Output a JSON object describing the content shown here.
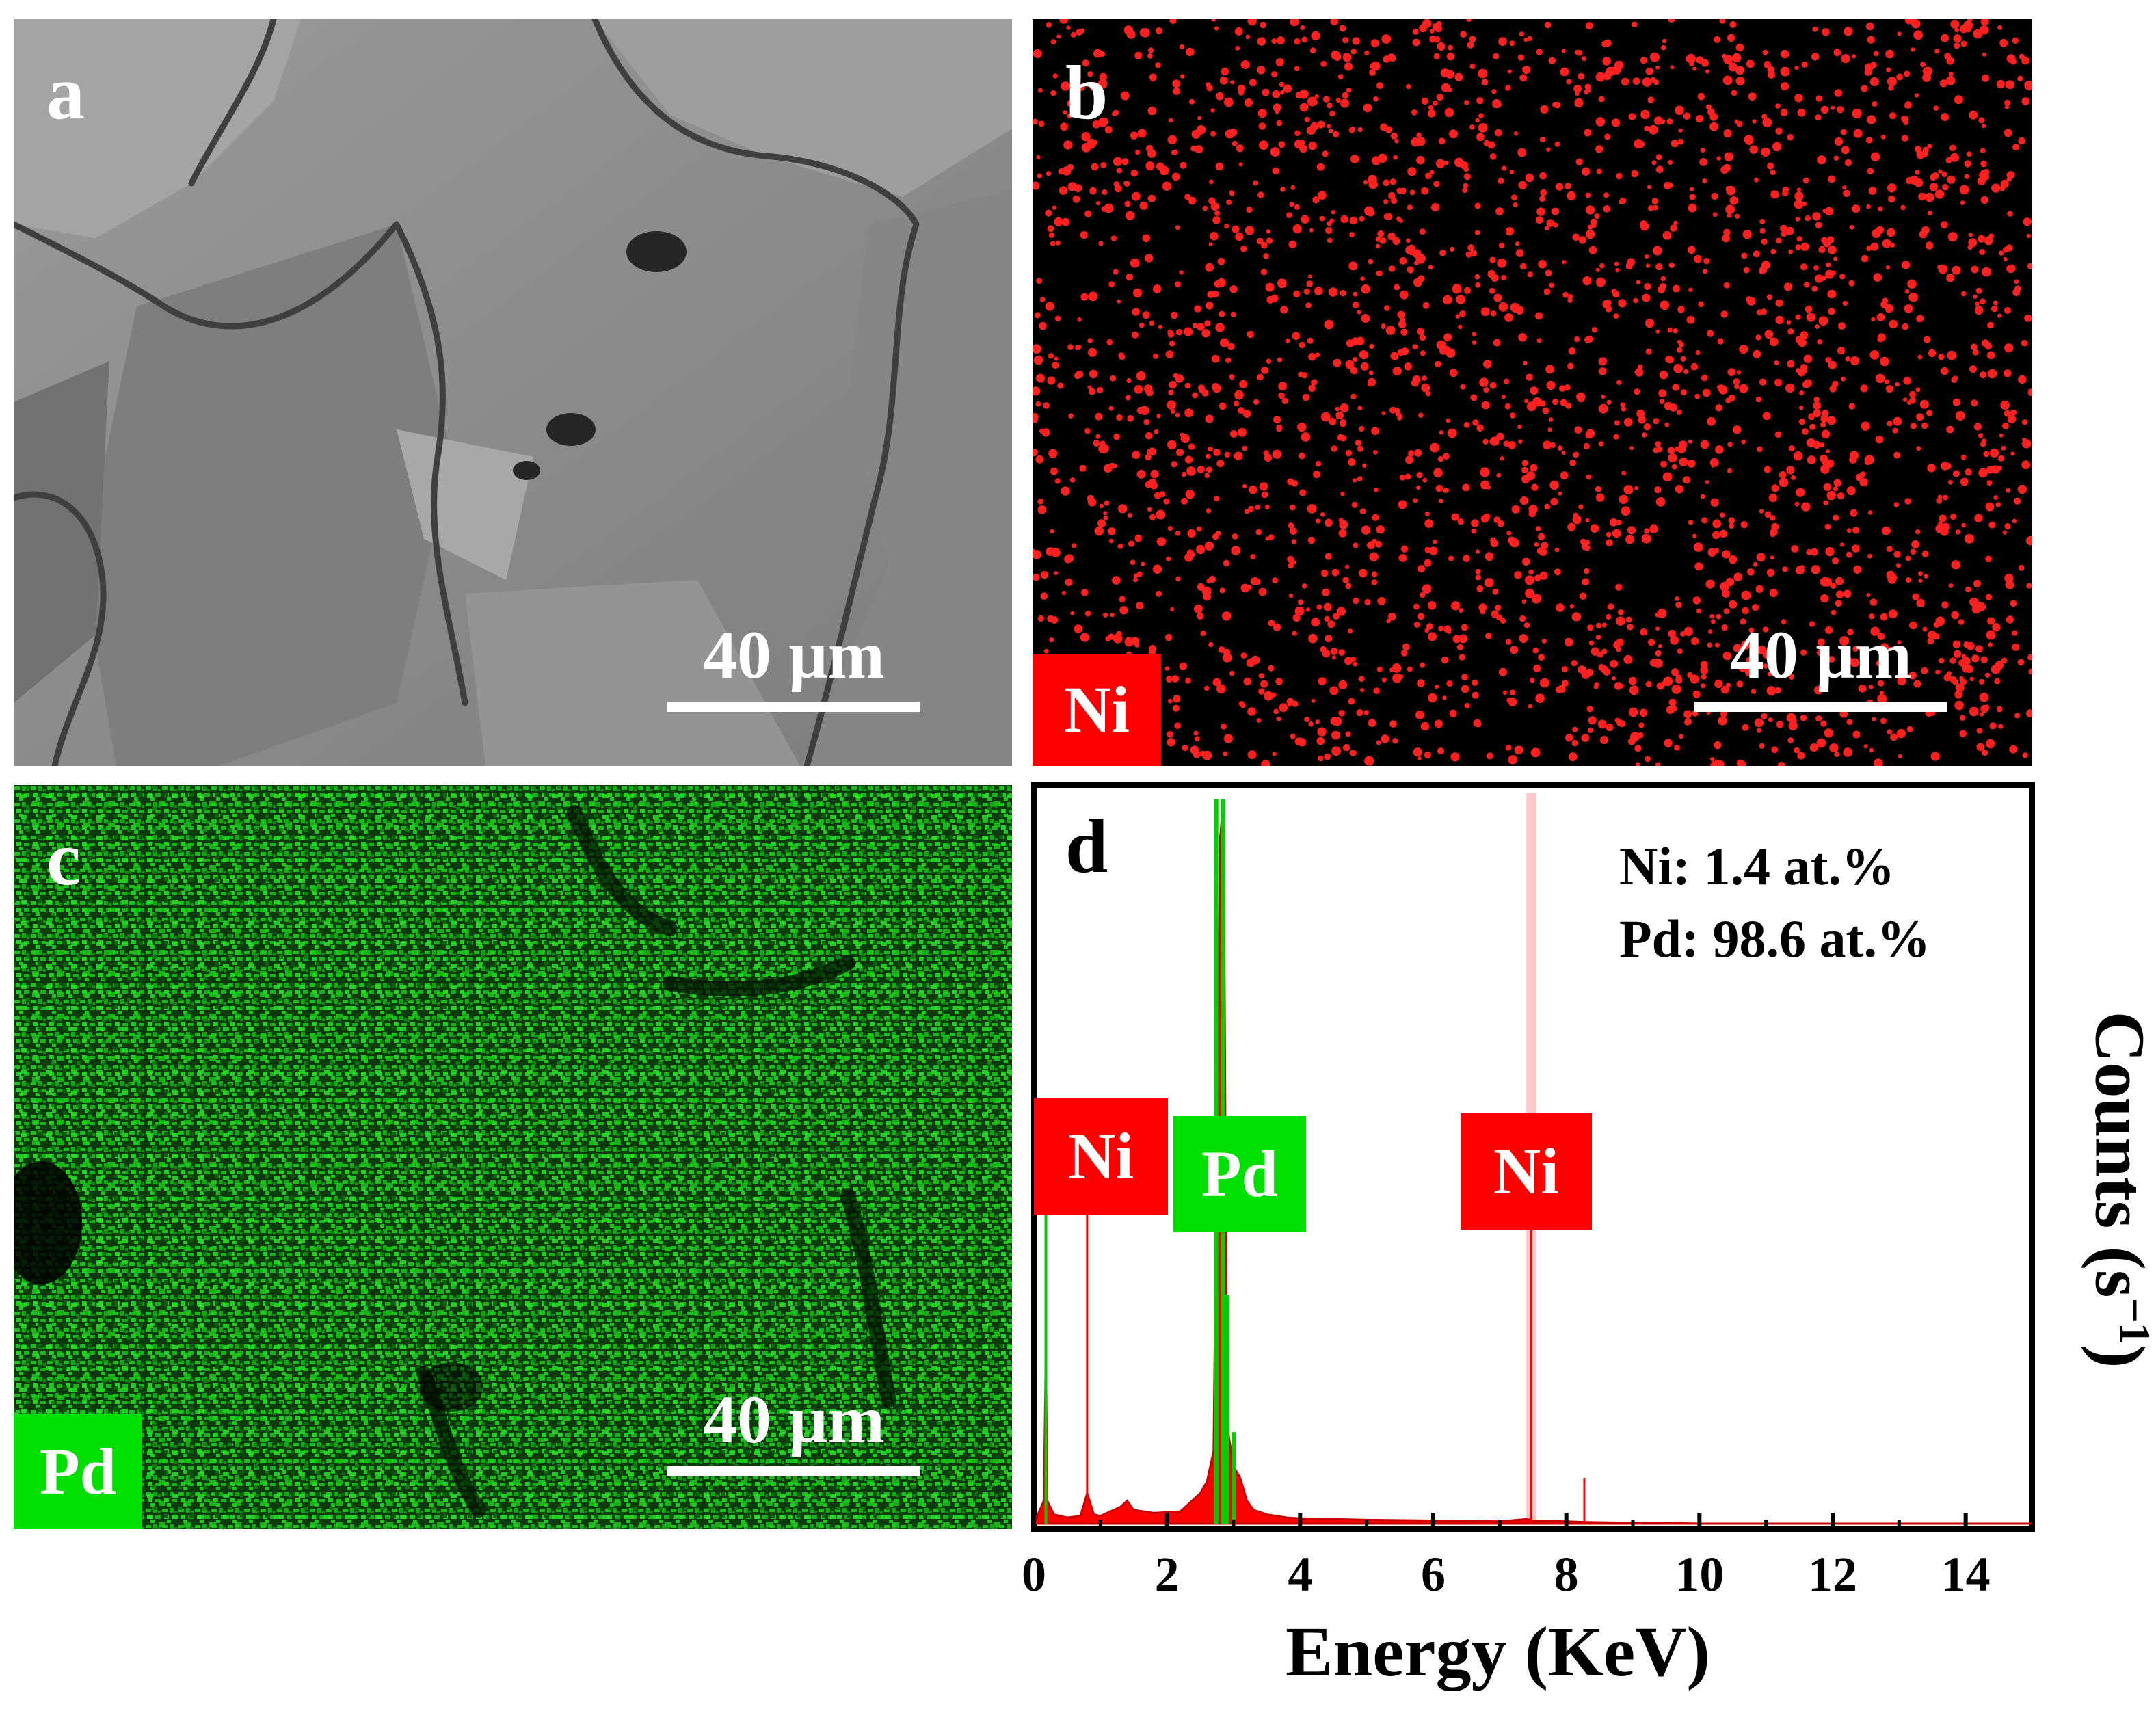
{
  "panels": {
    "a": {
      "letter": "a",
      "scalebar": "40 µm"
    },
    "b": {
      "letter": "b",
      "scalebar": "40 µm",
      "element": "Ni",
      "element_color": "#ff0000",
      "dot_color": "#ff2020"
    },
    "c": {
      "letter": "c",
      "scalebar": "40 µm",
      "element": "Pd",
      "element_color": "#00e000",
      "dot_color": "#10d010"
    },
    "d": {
      "letter": "d"
    }
  },
  "chart_data": {
    "type": "line",
    "xlabel": "Energy (KeV)",
    "ylabel_main": "Counts (s",
    "ylabel_sup": "−1",
    "ylabel_end": ")",
    "xlim": [
      0,
      15
    ],
    "x_ticks": [
      0,
      2,
      4,
      6,
      8,
      10,
      12,
      14
    ],
    "annotations": [
      "Ni: 1.4 at.%",
      "Pd: 98.6 at.%"
    ],
    "peak_labels": [
      {
        "text": "Ni",
        "color": "#ff0000",
        "energy": 0.8
      },
      {
        "text": "Pd",
        "color": "#00e000",
        "energy": 2.84
      },
      {
        "text": "Ni",
        "color": "#ff0000",
        "energy": 7.47
      }
    ],
    "series": [
      {
        "name": "Ni",
        "color": "#ff0000"
      },
      {
        "name": "Pd",
        "color": "#00d000"
      }
    ],
    "spectrum": {
      "x": [
        0.0,
        0.15,
        0.18,
        0.2,
        0.3,
        0.5,
        0.7,
        0.8,
        0.9,
        1.0,
        1.3,
        1.4,
        1.5,
        1.8,
        2.2,
        2.4,
        2.5,
        2.6,
        2.7,
        2.8,
        2.85,
        2.9,
        3.0,
        3.1,
        3.2,
        3.3,
        3.5,
        3.8,
        4.0,
        5.0,
        6.0,
        7.0,
        7.4,
        7.5,
        8.0,
        8.3,
        9.0,
        9.5,
        10.0,
        15.0
      ],
      "y": [
        0,
        30,
        230,
        30,
        12,
        8,
        10,
        40,
        12,
        10,
        22,
        30,
        18,
        14,
        16,
        32,
        40,
        55,
        95,
        900,
        950,
        130,
        75,
        60,
        30,
        18,
        12,
        8,
        7,
        5,
        4,
        3,
        6,
        4,
        3,
        2,
        1,
        1,
        0,
        0
      ]
    }
  }
}
